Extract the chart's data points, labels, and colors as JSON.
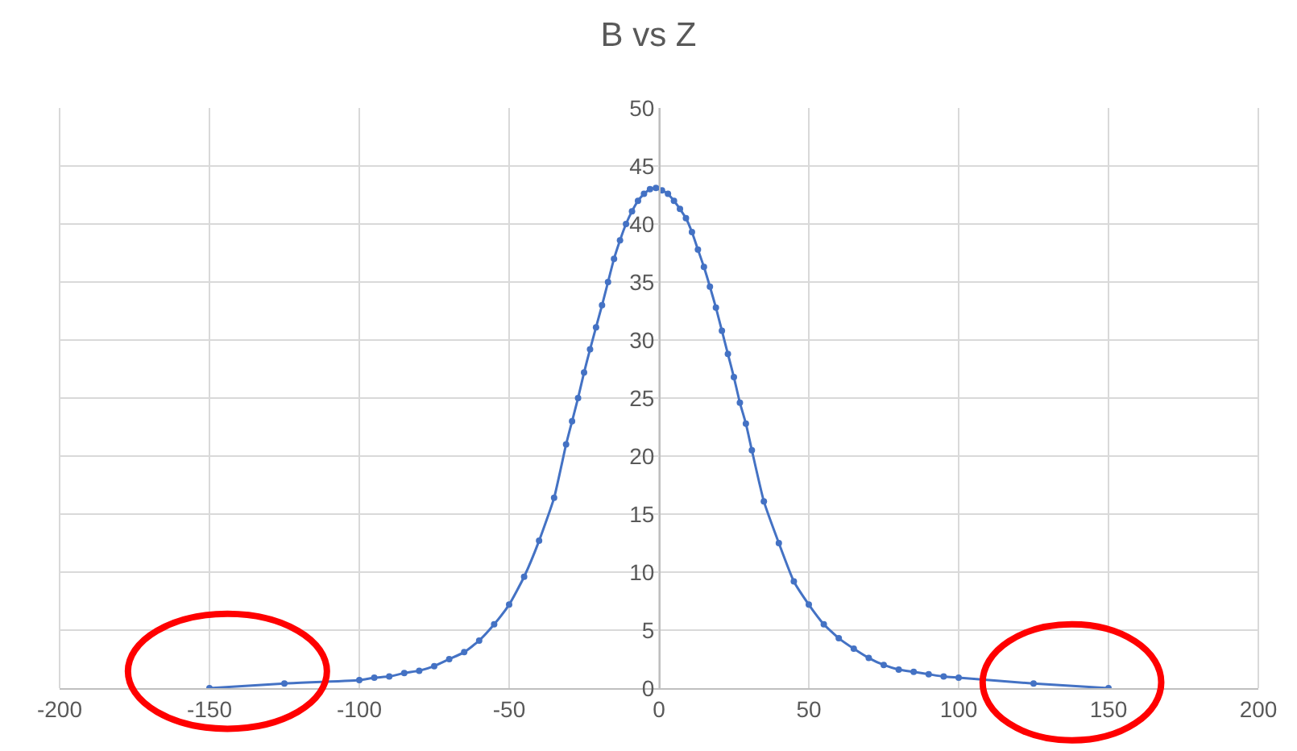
{
  "chart_data": {
    "type": "line",
    "title": "B vs Z",
    "x": [
      -150,
      -125,
      -100,
      -95,
      -90,
      -85,
      -80,
      -75,
      -70,
      -65,
      -60,
      -55,
      -50,
      -45,
      -40,
      -35,
      -31,
      -29,
      -27,
      -25,
      -23,
      -21,
      -19,
      -17,
      -15,
      -13,
      -11,
      -9,
      -7,
      -5,
      -3,
      -1,
      1,
      3,
      5,
      7,
      9,
      11,
      13,
      15,
      17,
      19,
      21,
      23,
      25,
      27,
      29,
      31,
      35,
      40,
      45,
      50,
      55,
      60,
      65,
      70,
      75,
      80,
      85,
      90,
      95,
      100,
      125,
      150
    ],
    "series": [
      {
        "color": "#4472c4",
        "values": [
          0,
          0.4,
          0.7,
          0.9,
          1.0,
          1.3,
          1.5,
          1.9,
          2.5,
          3.1,
          4.1,
          5.5,
          7.2,
          9.6,
          12.7,
          16.4,
          21,
          23,
          25,
          27.2,
          29.2,
          31.1,
          33,
          35,
          37,
          38.6,
          40,
          41.1,
          42,
          42.6,
          43,
          43.1,
          42.9,
          42.6,
          42,
          41.3,
          40.5,
          39.3,
          37.8,
          36.3,
          34.6,
          32.8,
          30.8,
          28.8,
          26.8,
          24.6,
          22.8,
          20.5,
          16.1,
          12.5,
          9.2,
          7.2,
          5.5,
          4.3,
          3.4,
          2.6,
          2.0,
          1.6,
          1.4,
          1.2,
          1.0,
          0.9,
          0.4,
          0
        ]
      }
    ],
    "xlim": [
      -200,
      200
    ],
    "xticks": [
      -200,
      -150,
      -100,
      -50,
      0,
      50,
      100,
      150,
      200
    ],
    "ylim": [
      0,
      50
    ],
    "yticks": [
      0,
      5,
      10,
      15,
      20,
      25,
      30,
      35,
      40,
      45,
      50
    ],
    "grid": true,
    "legend": false,
    "marker": "circle",
    "line_style": "solid"
  }
}
